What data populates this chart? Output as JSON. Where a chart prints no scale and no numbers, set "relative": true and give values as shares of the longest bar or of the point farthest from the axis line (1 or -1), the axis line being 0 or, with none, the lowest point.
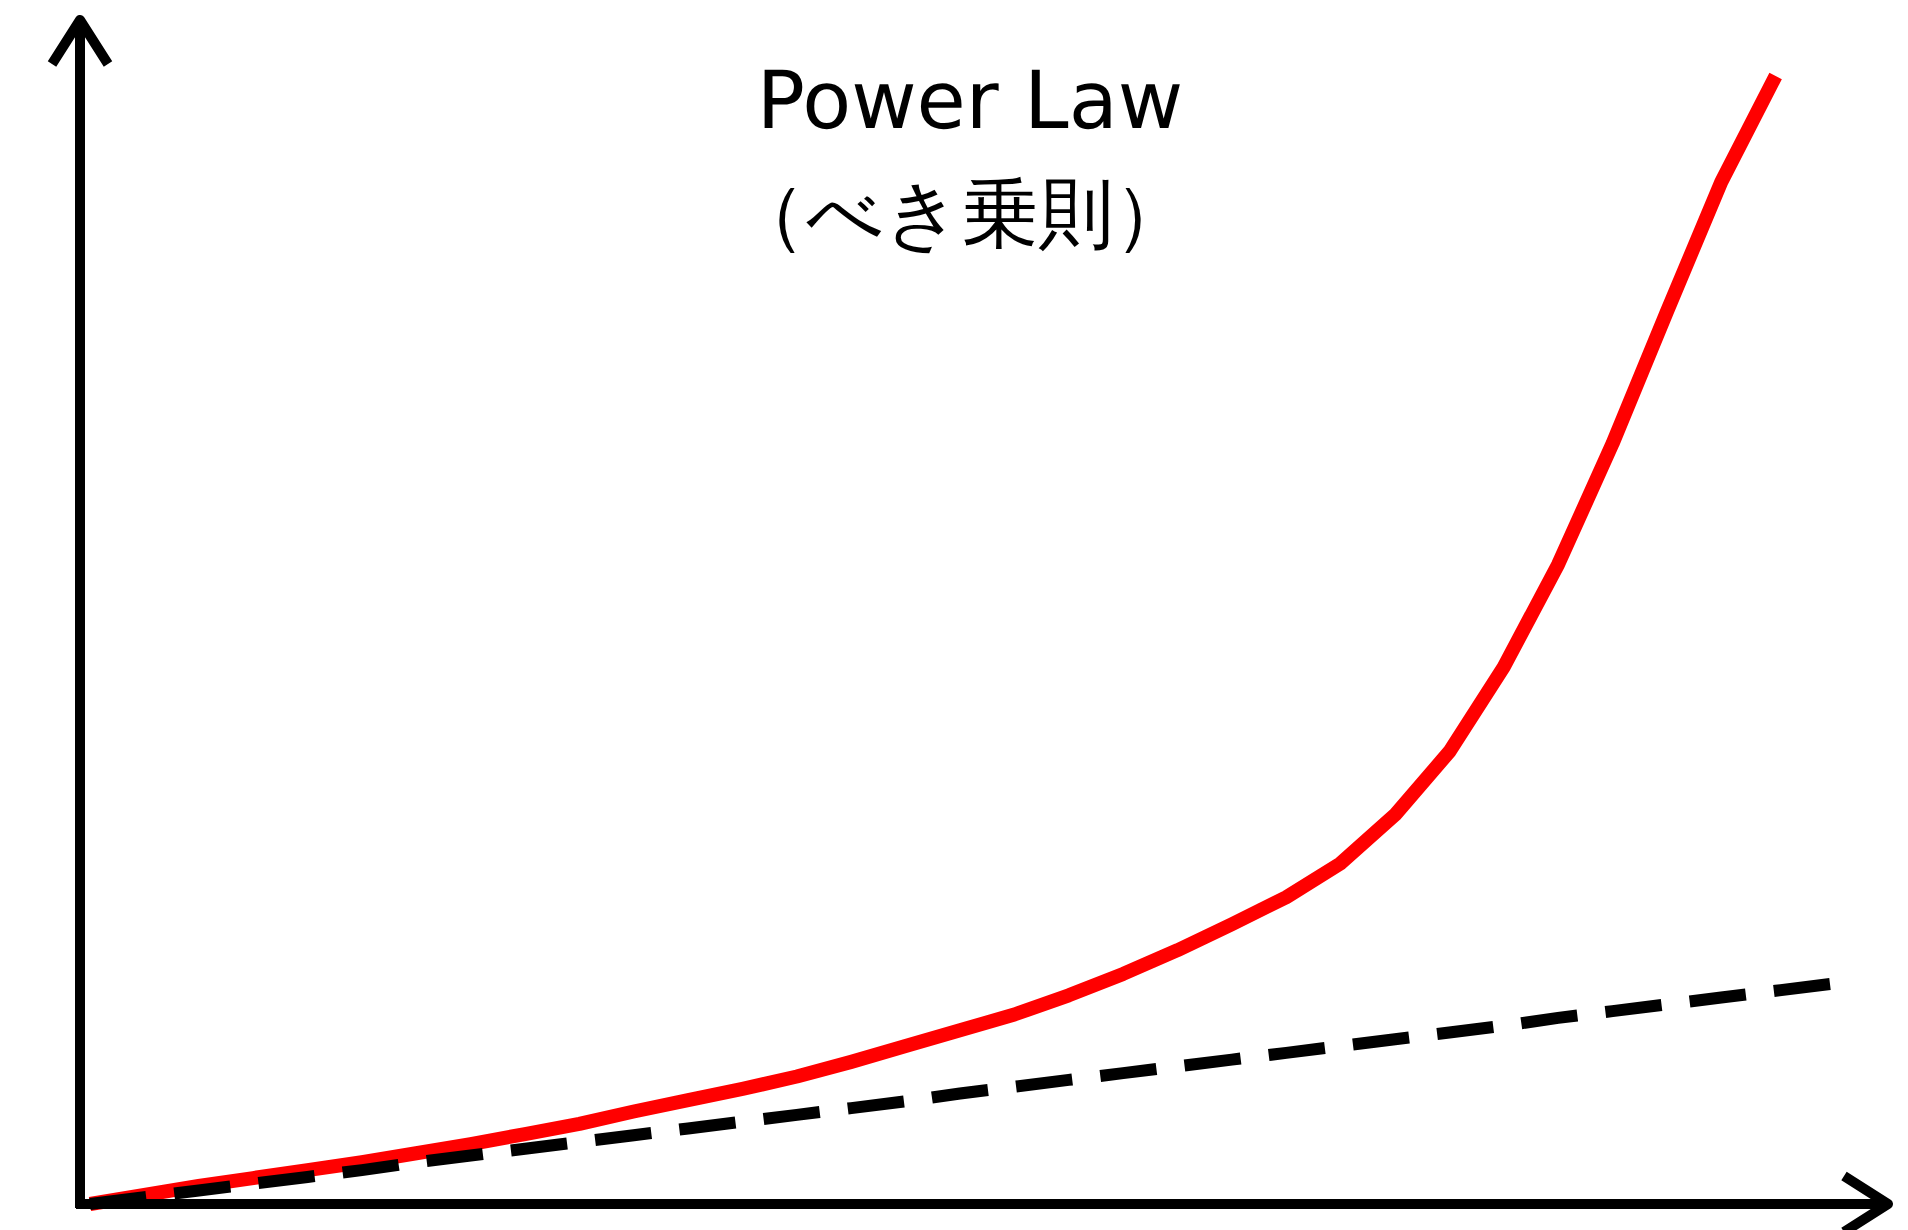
{
  "chart_data": {
    "type": "line",
    "title": "Power Law",
    "subtitle": "（べき乗則）",
    "relative": true,
    "categories": [
      null,
      null,
      null,
      null,
      null,
      null,
      null,
      null,
      null,
      null,
      null,
      null,
      null,
      null,
      null,
      null,
      null,
      null,
      null,
      null,
      null,
      null,
      null,
      null,
      null,
      null,
      null,
      null,
      null,
      null,
      null,
      null,
      null
    ],
    "series": [
      {
        "color": "#ff0000",
        "line_style": "solid",
        "values": [
          0,
          0.008,
          0.016,
          0.023,
          0.03,
          0.037,
          0.045,
          0.053,
          0.062,
          0.071,
          0.082,
          0.092,
          0.102,
          0.113,
          0.126,
          0.14,
          0.154,
          0.168,
          0.185,
          0.204,
          0.225,
          0.248,
          0.272,
          0.302,
          0.345,
          0.401,
          0.476,
          0.567,
          0.674,
          0.791,
          0.906,
          1,
          null
        ]
      },
      {
        "color": "#000000",
        "line_style": "dashed",
        "values": [
          0,
          0.006,
          0.012,
          0.018,
          0.024,
          0.03,
          0.037,
          0.043,
          0.049,
          0.055,
          0.061,
          0.067,
          0.073,
          0.079,
          0.085,
          0.091,
          0.098,
          0.104,
          0.11,
          0.116,
          0.122,
          0.128,
          0.134,
          0.14,
          0.146,
          0.152,
          0.158,
          0.165,
          0.171,
          0.177,
          0.183,
          0.189,
          0.195
        ]
      }
    ]
  }
}
